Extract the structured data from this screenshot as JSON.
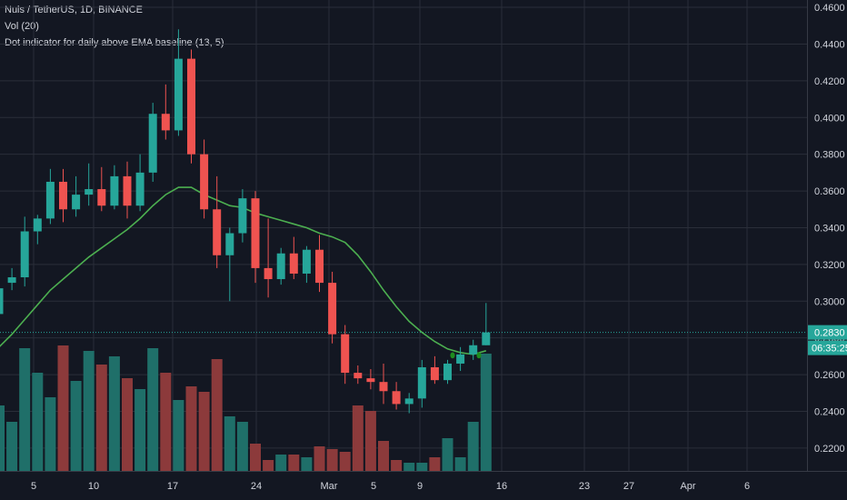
{
  "legend": {
    "symbol": "Nuls / TetherUS, 1D, BINANCE",
    "volume": "Vol (20)",
    "indicator": "Dot indicator for daily above EMA baseline (13, 5)"
  },
  "colors": {
    "background": "#131722",
    "grid": "#2a2e39",
    "up": "#26a69a",
    "down": "#ef5350",
    "vol_up": "#1f6f69",
    "vol_down": "#8c3a3b",
    "ema": "#4caf50",
    "dot": "#1e8c1e",
    "last_price_line": "#26a69a"
  },
  "price_axis": {
    "ticks": [
      "0.2200",
      "0.2400",
      "0.2600",
      "0.2800",
      "0.3000",
      "0.3200",
      "0.3400",
      "0.3600",
      "0.3800",
      "0.4000",
      "0.4200",
      "0.4400",
      "0.4600"
    ],
    "last_price": "0.2830",
    "countdown": "06:35:25"
  },
  "time_axis": {
    "labels": [
      "5",
      "10",
      "17",
      "24",
      "Mar",
      "5",
      "9",
      "16",
      "23",
      "27",
      "Apr",
      "6"
    ]
  },
  "chart_data": {
    "type": "candlestick",
    "title": "Nuls / TetherUS, 1D, BINANCE",
    "ylim": [
      0.215,
      0.462
    ],
    "x_labels": [
      "5",
      "10",
      "17",
      "24",
      "Mar",
      "5",
      "9",
      "16",
      "23",
      "27",
      "Apr",
      "6"
    ],
    "candles": [
      {
        "o": 0.293,
        "h": 0.312,
        "l": 0.285,
        "c": 0.307,
        "v": 0.24
      },
      {
        "o": 0.31,
        "h": 0.318,
        "l": 0.306,
        "c": 0.313,
        "v": 0.18
      },
      {
        "o": 0.313,
        "h": 0.346,
        "l": 0.308,
        "c": 0.338,
        "v": 0.45
      },
      {
        "o": 0.338,
        "h": 0.347,
        "l": 0.331,
        "c": 0.345,
        "v": 0.36
      },
      {
        "o": 0.345,
        "h": 0.372,
        "l": 0.342,
        "c": 0.365,
        "v": 0.27
      },
      {
        "o": 0.365,
        "h": 0.372,
        "l": 0.343,
        "c": 0.35,
        "v": 0.46
      },
      {
        "o": 0.35,
        "h": 0.368,
        "l": 0.346,
        "c": 0.358,
        "v": 0.33
      },
      {
        "o": 0.358,
        "h": 0.375,
        "l": 0.352,
        "c": 0.361,
        "v": 0.44
      },
      {
        "o": 0.361,
        "h": 0.373,
        "l": 0.349,
        "c": 0.352,
        "v": 0.39
      },
      {
        "o": 0.352,
        "h": 0.374,
        "l": 0.35,
        "c": 0.368,
        "v": 0.42
      },
      {
        "o": 0.368,
        "h": 0.376,
        "l": 0.345,
        "c": 0.352,
        "v": 0.34
      },
      {
        "o": 0.352,
        "h": 0.38,
        "l": 0.349,
        "c": 0.37,
        "v": 0.3
      },
      {
        "o": 0.37,
        "h": 0.408,
        "l": 0.365,
        "c": 0.402,
        "v": 0.45
      },
      {
        "o": 0.402,
        "h": 0.418,
        "l": 0.388,
        "c": 0.393,
        "v": 0.36
      },
      {
        "o": 0.393,
        "h": 0.448,
        "l": 0.39,
        "c": 0.432,
        "v": 0.26
      },
      {
        "o": 0.432,
        "h": 0.437,
        "l": 0.375,
        "c": 0.38,
        "v": 0.31
      },
      {
        "o": 0.38,
        "h": 0.388,
        "l": 0.345,
        "c": 0.35,
        "v": 0.29
      },
      {
        "o": 0.35,
        "h": 0.368,
        "l": 0.318,
        "c": 0.325,
        "v": 0.41
      },
      {
        "o": 0.325,
        "h": 0.34,
        "l": 0.3,
        "c": 0.337,
        "v": 0.2
      },
      {
        "o": 0.337,
        "h": 0.361,
        "l": 0.332,
        "c": 0.356,
        "v": 0.18
      },
      {
        "o": 0.356,
        "h": 0.36,
        "l": 0.31,
        "c": 0.318,
        "v": 0.1
      },
      {
        "o": 0.318,
        "h": 0.345,
        "l": 0.302,
        "c": 0.312,
        "v": 0.04
      },
      {
        "o": 0.312,
        "h": 0.329,
        "l": 0.309,
        "c": 0.326,
        "v": 0.06
      },
      {
        "o": 0.326,
        "h": 0.335,
        "l": 0.312,
        "c": 0.315,
        "v": 0.06
      },
      {
        "o": 0.315,
        "h": 0.33,
        "l": 0.31,
        "c": 0.328,
        "v": 0.05
      },
      {
        "o": 0.328,
        "h": 0.336,
        "l": 0.305,
        "c": 0.31,
        "v": 0.09
      },
      {
        "o": 0.31,
        "h": 0.316,
        "l": 0.277,
        "c": 0.282,
        "v": 0.08
      },
      {
        "o": 0.282,
        "h": 0.287,
        "l": 0.255,
        "c": 0.261,
        "v": 0.07
      },
      {
        "o": 0.261,
        "h": 0.265,
        "l": 0.255,
        "c": 0.258,
        "v": 0.24
      },
      {
        "o": 0.258,
        "h": 0.263,
        "l": 0.252,
        "c": 0.256,
        "v": 0.22
      },
      {
        "o": 0.256,
        "h": 0.266,
        "l": 0.244,
        "c": 0.251,
        "v": 0.11
      },
      {
        "o": 0.251,
        "h": 0.256,
        "l": 0.241,
        "c": 0.244,
        "v": 0.04
      },
      {
        "o": 0.244,
        "h": 0.25,
        "l": 0.239,
        "c": 0.247,
        "v": 0.03
      },
      {
        "o": 0.247,
        "h": 0.268,
        "l": 0.242,
        "c": 0.264,
        "v": 0.03
      },
      {
        "o": 0.264,
        "h": 0.27,
        "l": 0.255,
        "c": 0.257,
        "v": 0.05
      },
      {
        "o": 0.257,
        "h": 0.268,
        "l": 0.255,
        "c": 0.266,
        "v": 0.12
      },
      {
        "o": 0.266,
        "h": 0.275,
        "l": 0.262,
        "c": 0.271,
        "v": 0.05
      },
      {
        "o": 0.271,
        "h": 0.279,
        "l": 0.268,
        "c": 0.276,
        "v": 0.18
      },
      {
        "o": 0.276,
        "h": 0.299,
        "l": 0.276,
        "c": 0.283,
        "v": 0.43
      }
    ],
    "ema": [
      0.275,
      0.282,
      0.29,
      0.298,
      0.306,
      0.312,
      0.318,
      0.324,
      0.329,
      0.334,
      0.339,
      0.345,
      0.352,
      0.358,
      0.362,
      0.362,
      0.358,
      0.355,
      0.352,
      0.351,
      0.348,
      0.346,
      0.344,
      0.342,
      0.34,
      0.337,
      0.335,
      0.332,
      0.325,
      0.316,
      0.306,
      0.297,
      0.289,
      0.283,
      0.278,
      0.274,
      0.272,
      0.271,
      0.273
    ],
    "dots": [
      0.2705,
      0.2705
    ]
  }
}
